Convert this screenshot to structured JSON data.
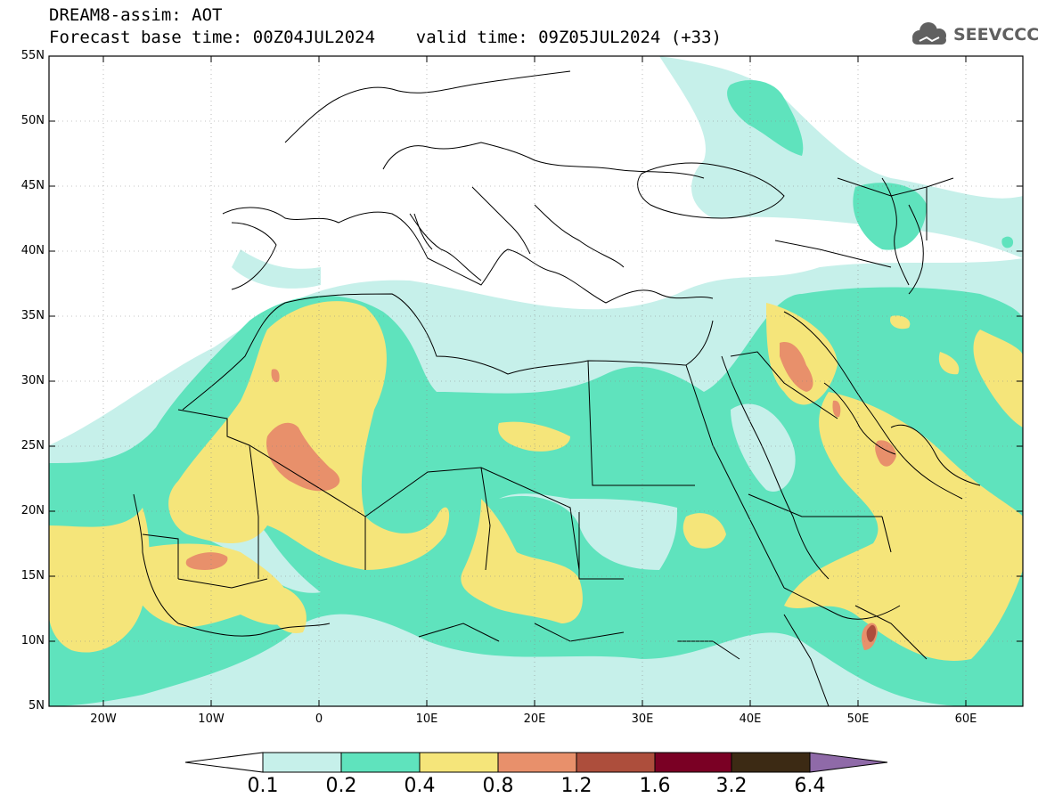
{
  "title": {
    "line1": "DREAM8-assim: AOT",
    "line2": "Forecast base time: 00Z04JUL2024    valid time: 09Z05JUL2024 (+33)"
  },
  "logo": {
    "text": "SEEVCCC",
    "icon": "cloud-icon",
    "color": "#606060"
  },
  "axes": {
    "lat_labels": [
      "55N",
      "50N",
      "45N",
      "40N",
      "35N",
      "30N",
      "25N",
      "20N",
      "15N",
      "10N",
      "5N"
    ],
    "lon_labels": [
      "20W",
      "10W",
      "0",
      "10E",
      "20E",
      "30E",
      "40E",
      "50E",
      "60E"
    ]
  },
  "colorbar": {
    "labels": [
      "0.1",
      "0.2",
      "0.4",
      "0.8",
      "1.2",
      "1.6",
      "3.2",
      "6.4"
    ],
    "colors": {
      "below": "#ffffff",
      "c1": "#c6f0ea",
      "c2": "#5fe3bd",
      "c3": "#f5e57a",
      "c4": "#e8906b",
      "c5": "#ad4e3c",
      "c6": "#7a0024",
      "c7": "#3c2a14",
      "above": "#8f6aa8"
    }
  },
  "map_extent": {
    "lon_min": -25,
    "lon_max": 65,
    "lat_min": 5,
    "lat_max": 55
  }
}
